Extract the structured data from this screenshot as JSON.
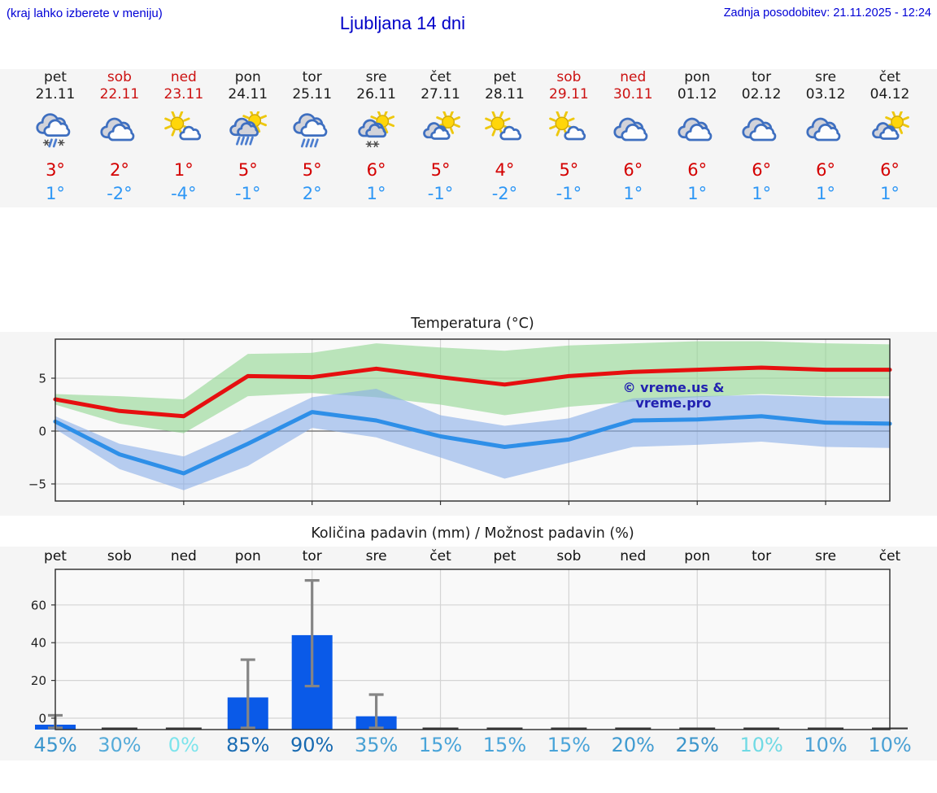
{
  "header": {
    "location_hint": "(kraj lahko izberete v meniju)",
    "title": "Ljubljana 14 dni",
    "last_update": "Zadnja posodobitev: 21.11.2025 - 12:24"
  },
  "watermark": "© vreme.us & vreme.pro",
  "days": [
    {
      "name": "pet",
      "date": "21.11",
      "weekend": false,
      "icon": "sleet",
      "tmax": "3°",
      "tmin": "1°"
    },
    {
      "name": "sob",
      "date": "22.11",
      "weekend": true,
      "icon": "cloudy",
      "tmax": "2°",
      "tmin": "-2°"
    },
    {
      "name": "ned",
      "date": "23.11",
      "weekend": true,
      "icon": "sun-small-cloud",
      "tmax": "1°",
      "tmin": "-4°"
    },
    {
      "name": "pon",
      "date": "24.11",
      "weekend": false,
      "icon": "sun-rain",
      "tmax": "5°",
      "tmin": "-1°"
    },
    {
      "name": "tor",
      "date": "25.11",
      "weekend": false,
      "icon": "rain",
      "tmax": "5°",
      "tmin": "2°"
    },
    {
      "name": "sre",
      "date": "26.11",
      "weekend": false,
      "icon": "sun-snow",
      "tmax": "6°",
      "tmin": "1°"
    },
    {
      "name": "čet",
      "date": "27.11",
      "weekend": false,
      "icon": "sun-cloud",
      "tmax": "5°",
      "tmin": "-1°"
    },
    {
      "name": "pet",
      "date": "28.11",
      "weekend": false,
      "icon": "sun-small-cloud",
      "tmax": "4°",
      "tmin": "-2°"
    },
    {
      "name": "sob",
      "date": "29.11",
      "weekend": true,
      "icon": "sun-small-cloud",
      "tmax": "5°",
      "tmin": "-1°"
    },
    {
      "name": "ned",
      "date": "30.11",
      "weekend": true,
      "icon": "cloudy",
      "tmax": "6°",
      "tmin": "1°"
    },
    {
      "name": "pon",
      "date": "01.12",
      "weekend": false,
      "icon": "cloudy",
      "tmax": "6°",
      "tmin": "1°"
    },
    {
      "name": "tor",
      "date": "02.12",
      "weekend": false,
      "icon": "cloudy",
      "tmax": "6°",
      "tmin": "1°"
    },
    {
      "name": "sre",
      "date": "03.12",
      "weekend": false,
      "icon": "cloudy",
      "tmax": "6°",
      "tmin": "1°"
    },
    {
      "name": "čet",
      "date": "04.12",
      "weekend": false,
      "icon": "sun-cloud",
      "tmax": "6°",
      "tmin": "1°"
    }
  ],
  "chart_data": [
    {
      "type": "line",
      "title": "Temperatura (°C)",
      "categories": [
        "21.11",
        "22.11",
        "23.11",
        "24.11",
        "25.11",
        "26.11",
        "27.11",
        "28.11",
        "29.11",
        "30.11",
        "01.12",
        "02.12",
        "03.12",
        "04.12"
      ],
      "series": [
        {
          "name": "max temperature",
          "color": "#e60f0f",
          "values": [
            3.0,
            1.9,
            1.4,
            5.2,
            5.1,
            5.9,
            5.1,
            4.4,
            5.2,
            5.6,
            5.8,
            6.0,
            5.8,
            5.8
          ]
        },
        {
          "name": "min temperature",
          "color": "#2e8fe8",
          "values": [
            0.9,
            -2.2,
            -4.0,
            -1.2,
            1.8,
            1.0,
            -0.5,
            -1.5,
            -0.8,
            1.0,
            1.1,
            1.4,
            0.8,
            0.7
          ]
        }
      ],
      "bands": [
        {
          "series": "max temperature",
          "color": "#90d690",
          "upper": [
            3.5,
            3.3,
            3.0,
            7.3,
            7.4,
            8.3,
            7.9,
            7.6,
            8.1,
            8.3,
            8.5,
            8.5,
            8.3,
            8.2
          ],
          "lower": [
            2.5,
            0.7,
            -0.2,
            3.3,
            3.6,
            3.2,
            2.5,
            1.5,
            2.3,
            2.8,
            3.2,
            3.5,
            3.3,
            3.3
          ]
        },
        {
          "series": "min temperature",
          "color": "#88aee8",
          "upper": [
            1.4,
            -1.2,
            -2.4,
            0.3,
            3.2,
            4.0,
            1.5,
            0.5,
            1.2,
            3.1,
            3.3,
            3.4,
            3.2,
            3.1
          ],
          "lower": [
            0.2,
            -3.6,
            -5.6,
            -3.3,
            0.3,
            -0.6,
            -2.5,
            -4.5,
            -3.0,
            -1.5,
            -1.3,
            -1.0,
            -1.5,
            -1.6
          ]
        }
      ],
      "yticks": [
        -5,
        0,
        5
      ],
      "ylim": [
        -6.6,
        8.7
      ],
      "grid": true,
      "legend": "none"
    },
    {
      "type": "bar",
      "title": "Količina padavin (mm) / Možnost padavin (%)",
      "categories": [
        "pet",
        "sob",
        "ned",
        "pon",
        "tor",
        "sre",
        "čet",
        "pet",
        "sob",
        "ned",
        "pon",
        "tor",
        "sre",
        "čet"
      ],
      "values": [
        0.3,
        0,
        0,
        11,
        44,
        1,
        0,
        0,
        0,
        0,
        0,
        0,
        0,
        0
      ],
      "bar_color": "#0a5ae8",
      "error_bars": [
        {
          "day_index": 0,
          "low": null,
          "high": 1.5
        },
        {
          "day_index": 3,
          "low": null,
          "high": 31
        },
        {
          "day_index": 4,
          "low": 17,
          "high": 73
        },
        {
          "day_index": 5,
          "low": null,
          "high": 12.5
        }
      ],
      "probabilities": [
        {
          "label": "45%",
          "color": "#3c96cd"
        },
        {
          "label": "30%",
          "color": "#55abd9"
        },
        {
          "label": "0%",
          "color": "#7de4ec"
        },
        {
          "label": "85%",
          "color": "#1a6cb3"
        },
        {
          "label": "90%",
          "color": "#176ab1"
        },
        {
          "label": "35%",
          "color": "#47a0d3"
        },
        {
          "label": "15%",
          "color": "#49a4d9"
        },
        {
          "label": "15%",
          "color": "#49a4d9"
        },
        {
          "label": "15%",
          "color": "#49a4d9"
        },
        {
          "label": "20%",
          "color": "#3f9bd1"
        },
        {
          "label": "25%",
          "color": "#3a95cb"
        },
        {
          "label": "10%",
          "color": "#70dae4"
        },
        {
          "label": "10%",
          "color": "#4aa0d4"
        },
        {
          "label": "10%",
          "color": "#4aa0d4"
        }
      ],
      "yticks": [
        0,
        20,
        40,
        60
      ],
      "ylim": [
        -6,
        79
      ],
      "grid": true
    }
  ]
}
